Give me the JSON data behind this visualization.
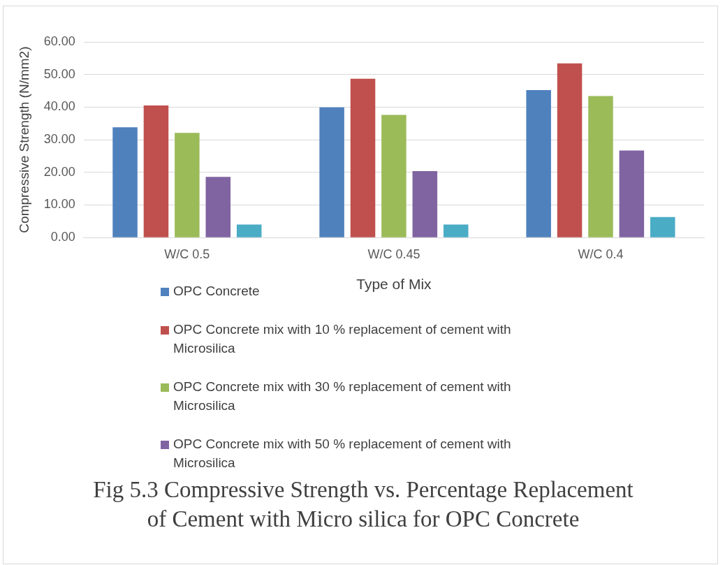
{
  "chart_data": {
    "type": "bar",
    "title": "Fig 5.3 Compressive Strength vs. Percentage Replacement of Cement with Micro silica for OPC Concrete",
    "xlabel": "Type of Mix",
    "ylabel": "Compressive Strength (N/mm2)",
    "categories": [
      "W/C 0.5",
      "W/C 0.45",
      "W/C 0.4"
    ],
    "series": [
      {
        "name": "OPC Concrete",
        "color": "#4f81bd",
        "values": [
          33.8,
          39.9,
          45.2
        ]
      },
      {
        "name": "OPC Concrete mix with 10 % replacement of cement with Microsilica",
        "color": "#c0504d",
        "values": [
          40.5,
          48.7,
          53.4
        ]
      },
      {
        "name": "OPC Concrete mix with 30 % replacement of cement with Microsilica",
        "color": "#9bbb59",
        "values": [
          32.1,
          37.6,
          43.4
        ]
      },
      {
        "name": "OPC Concrete mix with 50 % replacement of cement with Microsilica",
        "color": "#8064a2",
        "values": [
          18.6,
          20.4,
          26.7
        ]
      },
      {
        "color": "#4bacc6",
        "values": [
          4.0,
          4.0,
          6.3
        ]
      }
    ],
    "ylim": [
      0,
      60
    ],
    "yticks": [
      {
        "value": 0,
        "label": "0.00"
      },
      {
        "value": 10,
        "label": "10.00"
      },
      {
        "value": 20,
        "label": "20.00"
      },
      {
        "value": 30,
        "label": "30.00"
      },
      {
        "value": 40,
        "label": "40.00"
      },
      {
        "value": 50,
        "label": "50.00"
      },
      {
        "value": 60,
        "label": "60.00"
      }
    ],
    "grid": "y",
    "legend": "bottom"
  }
}
